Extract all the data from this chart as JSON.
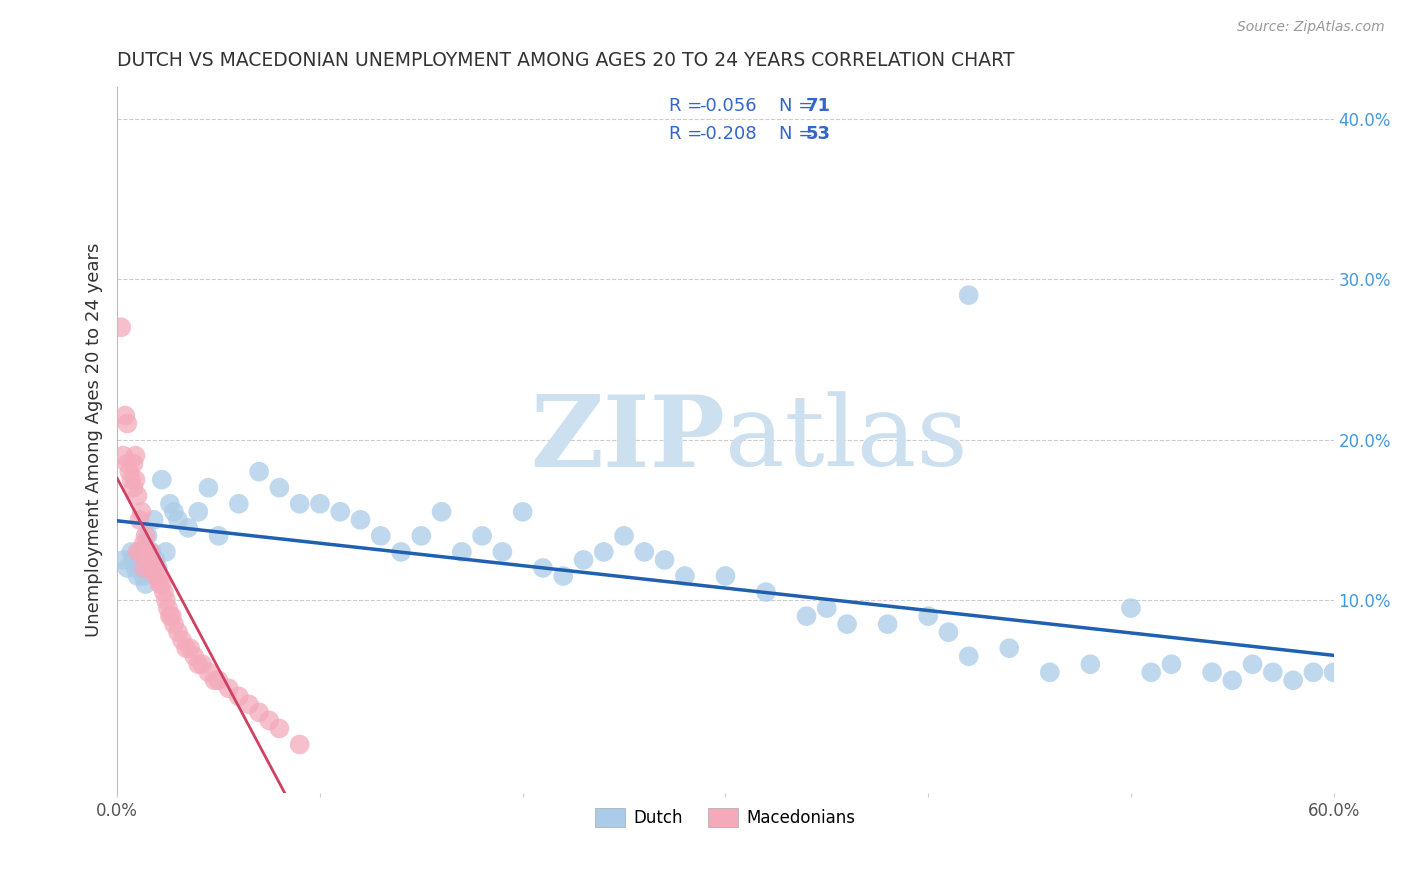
{
  "title": "DUTCH VS MACEDONIAN UNEMPLOYMENT AMONG AGES 20 TO 24 YEARS CORRELATION CHART",
  "source": "Source: ZipAtlas.com",
  "ylabel": "Unemployment Among Ages 20 to 24 years",
  "xlim": [
    0.0,
    0.6
  ],
  "ylim": [
    -0.02,
    0.42
  ],
  "xtick_values": [
    0.0,
    0.1,
    0.2,
    0.3,
    0.4,
    0.5,
    0.6
  ],
  "xtick_labels": [
    "0.0%",
    "",
    "",
    "",
    "",
    "",
    "60.0%"
  ],
  "ytick_values": [
    0.1,
    0.2,
    0.3,
    0.4
  ],
  "ytick_labels": [
    "10.0%",
    "20.0%",
    "30.0%",
    "40.0%"
  ],
  "dutch_color": "#aacce8",
  "macedonian_color": "#f4aabb",
  "dutch_line_color": "#2060b0",
  "macedonian_line_color": "#d04060",
  "legend_r_dutch": "-0.056",
  "legend_n_dutch": "71",
  "legend_r_mac": "-0.208",
  "legend_n_mac": "53",
  "legend_text_color": "#3366cc",
  "watermark_color": "#cce0f0",
  "background_color": "#ffffff",
  "grid_color": "#cccccc",
  "title_color": "#333333",
  "axis_color": "#555555",
  "right_ytick_color": "#4499dd",
  "dutch_x": [
    0.003,
    0.005,
    0.007,
    0.008,
    0.009,
    0.01,
    0.011,
    0.012,
    0.013,
    0.014,
    0.015,
    0.016,
    0.017,
    0.018,
    0.019,
    0.02,
    0.022,
    0.024,
    0.026,
    0.028,
    0.03,
    0.035,
    0.04,
    0.045,
    0.05,
    0.06,
    0.07,
    0.08,
    0.09,
    0.1,
    0.11,
    0.12,
    0.13,
    0.14,
    0.15,
    0.16,
    0.17,
    0.18,
    0.19,
    0.2,
    0.21,
    0.22,
    0.23,
    0.24,
    0.25,
    0.26,
    0.27,
    0.28,
    0.3,
    0.32,
    0.34,
    0.35,
    0.36,
    0.38,
    0.4,
    0.41,
    0.42,
    0.44,
    0.46,
    0.48,
    0.5,
    0.51,
    0.52,
    0.54,
    0.55,
    0.56,
    0.57,
    0.58,
    0.59,
    0.6,
    0.42
  ],
  "dutch_y": [
    0.125,
    0.12,
    0.13,
    0.125,
    0.12,
    0.115,
    0.13,
    0.12,
    0.115,
    0.11,
    0.14,
    0.125,
    0.13,
    0.15,
    0.125,
    0.12,
    0.175,
    0.13,
    0.16,
    0.155,
    0.15,
    0.145,
    0.155,
    0.17,
    0.14,
    0.16,
    0.18,
    0.17,
    0.16,
    0.16,
    0.155,
    0.15,
    0.14,
    0.13,
    0.14,
    0.155,
    0.13,
    0.14,
    0.13,
    0.155,
    0.12,
    0.115,
    0.125,
    0.13,
    0.14,
    0.13,
    0.125,
    0.115,
    0.115,
    0.105,
    0.09,
    0.095,
    0.085,
    0.085,
    0.09,
    0.08,
    0.065,
    0.07,
    0.055,
    0.06,
    0.095,
    0.055,
    0.06,
    0.055,
    0.05,
    0.06,
    0.055,
    0.05,
    0.055,
    0.055,
    0.29
  ],
  "mac_x": [
    0.002,
    0.003,
    0.004,
    0.005,
    0.005,
    0.006,
    0.007,
    0.008,
    0.008,
    0.009,
    0.009,
    0.01,
    0.01,
    0.011,
    0.012,
    0.012,
    0.013,
    0.013,
    0.014,
    0.014,
    0.015,
    0.015,
    0.016,
    0.016,
    0.017,
    0.018,
    0.019,
    0.02,
    0.021,
    0.022,
    0.023,
    0.024,
    0.025,
    0.026,
    0.027,
    0.028,
    0.03,
    0.032,
    0.034,
    0.036,
    0.038,
    0.04,
    0.042,
    0.045,
    0.048,
    0.05,
    0.055,
    0.06,
    0.065,
    0.07,
    0.075,
    0.08,
    0.09
  ],
  "mac_y": [
    0.27,
    0.19,
    0.215,
    0.185,
    0.21,
    0.18,
    0.175,
    0.17,
    0.185,
    0.175,
    0.19,
    0.165,
    0.13,
    0.15,
    0.13,
    0.155,
    0.12,
    0.135,
    0.13,
    0.14,
    0.13,
    0.125,
    0.12,
    0.13,
    0.125,
    0.12,
    0.115,
    0.115,
    0.11,
    0.11,
    0.105,
    0.1,
    0.095,
    0.09,
    0.09,
    0.085,
    0.08,
    0.075,
    0.07,
    0.07,
    0.065,
    0.06,
    0.06,
    0.055,
    0.05,
    0.05,
    0.045,
    0.04,
    0.035,
    0.03,
    0.025,
    0.02,
    0.01
  ]
}
